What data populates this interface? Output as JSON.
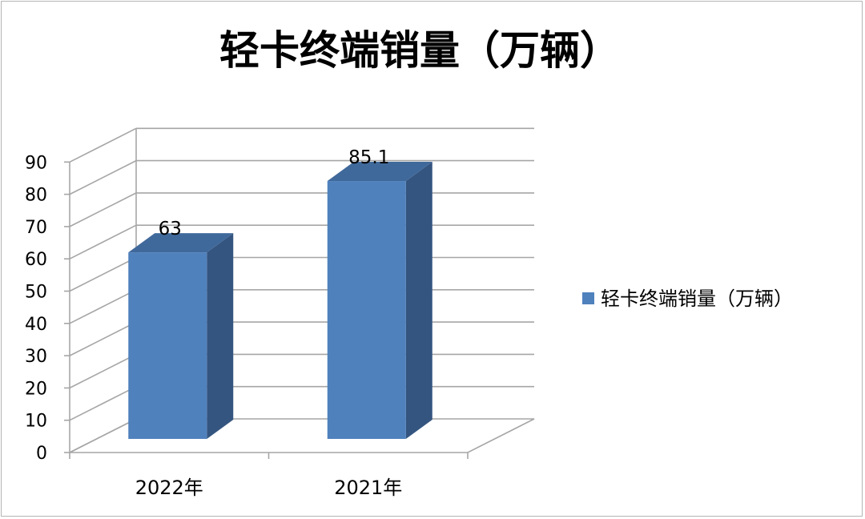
{
  "chart_data": {
    "type": "bar",
    "title": "轻卡终端销量（万辆）",
    "categories": [
      "2022年",
      "2021年"
    ],
    "series": [
      {
        "name": "轻卡终端销量（万辆）",
        "values": [
          63,
          85.1
        ]
      }
    ],
    "data_labels": [
      "63",
      "85.1"
    ],
    "y_ticks": [
      "0",
      "10",
      "20",
      "30",
      "40",
      "50",
      "60",
      "70",
      "80",
      "90"
    ],
    "ylim": [
      0,
      90
    ],
    "grid": true,
    "legend_position": "right",
    "colors": {
      "bar_front": "#4f81bd",
      "bar_side": "#34557f",
      "bar_top": "#40699b",
      "grid": "#a6a6a6"
    }
  }
}
